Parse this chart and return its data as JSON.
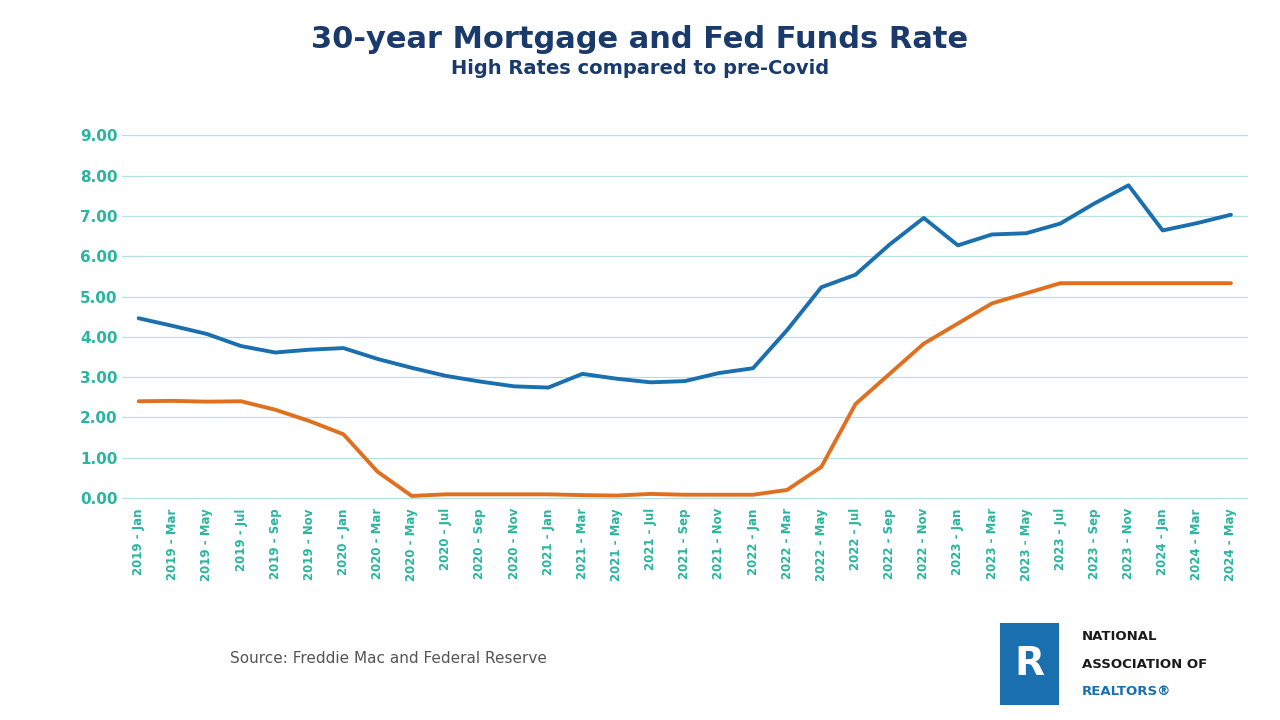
{
  "title": "30-year Mortgage and Fed Funds Rate",
  "subtitle": "High Rates compared to pre-Covid",
  "source": "Source: Freddie Mac and Federal Reserve",
  "title_color": "#1a3a6b",
  "subtitle_color": "#1a3a6b",
  "mortgage_color": "#1a6faf",
  "fed_color": "#e07020",
  "tick_color": "#2ab5a0",
  "grid_color": "#b8e0e0",
  "background_color": "#ffffff",
  "ylim": [
    -0.15,
    9.5
  ],
  "yticks": [
    0.0,
    1.0,
    2.0,
    3.0,
    4.0,
    5.0,
    6.0,
    7.0,
    8.0,
    9.0
  ],
  "x_labels": [
    "2019 - Jan",
    "2019 - Mar",
    "2019 - May",
    "2019 - Jul",
    "2019 - Sep",
    "2019 - Nov",
    "2020 - Jan",
    "2020 - Mar",
    "2020 - May",
    "2020 - Jul",
    "2020 - Sep",
    "2020 - Nov",
    "2021 - Jan",
    "2021 - Mar",
    "2021 - May",
    "2021 - Jul",
    "2021 - Sep",
    "2021 - Nov",
    "2022 - Jan",
    "2022 - Mar",
    "2022 - May",
    "2022 - Jul",
    "2022 - Sep",
    "2022 - Nov",
    "2023 - Jan",
    "2023 - Mar",
    "2023 - May",
    "2023 - Jul",
    "2023 - Sep",
    "2023 - Nov",
    "2024 - Jan",
    "2024 - Mar",
    "2024 - May"
  ],
  "mortgage_rate": [
    4.46,
    4.27,
    4.07,
    3.77,
    3.61,
    3.68,
    3.72,
    3.45,
    3.23,
    3.03,
    2.89,
    2.77,
    2.74,
    3.08,
    2.96,
    2.87,
    2.9,
    3.1,
    3.22,
    4.17,
    5.23,
    5.54,
    6.29,
    6.95,
    6.27,
    6.54,
    6.57,
    6.81,
    7.31,
    7.76,
    6.64,
    6.82,
    7.03
  ],
  "fed_funds_rate": [
    2.4,
    2.41,
    2.39,
    2.4,
    2.19,
    1.91,
    1.58,
    0.65,
    0.05,
    0.09,
    0.09,
    0.09,
    0.09,
    0.07,
    0.06,
    0.1,
    0.08,
    0.08,
    0.08,
    0.2,
    0.77,
    2.33,
    3.08,
    3.83,
    4.33,
    4.83,
    5.08,
    5.33,
    5.33,
    5.33,
    5.33,
    5.33,
    5.33
  ],
  "line_width": 2.8,
  "nar_logo_color": "#1a6faf",
  "nar_text_color": "#1a1a1a",
  "nar_realtors_color": "#1a6faf"
}
